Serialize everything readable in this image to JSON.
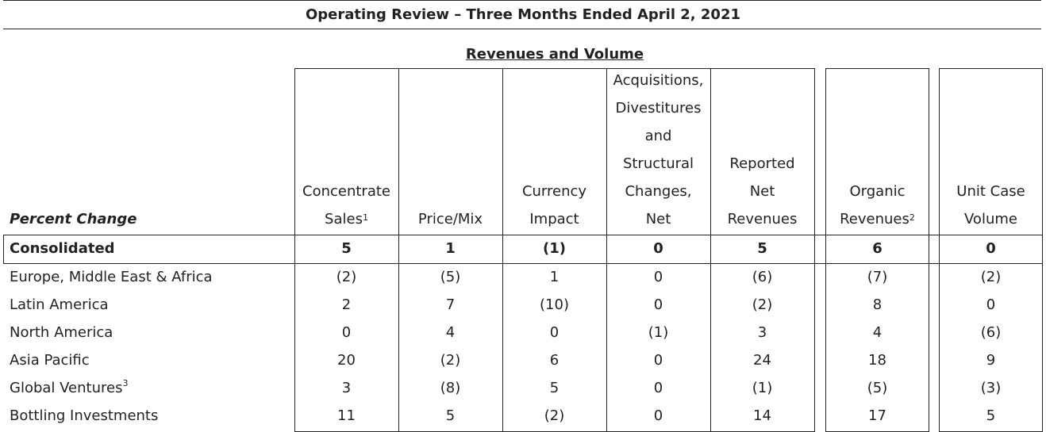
{
  "title": "Operating Review – Three Months Ended April 2, 2021",
  "group_header": "Revenues and Volume",
  "row_header": "Percent Change",
  "columns": [
    {
      "lines": [
        "Concentrate",
        "Sales"
      ],
      "sup": "1"
    },
    {
      "lines": [
        "Price/Mix"
      ],
      "sup": ""
    },
    {
      "lines": [
        "Currency",
        "Impact"
      ],
      "sup": ""
    },
    {
      "lines": [
        "Acquisitions,",
        "Divestitures",
        "and",
        "Structural",
        "Changes,",
        "Net"
      ],
      "sup": ""
    },
    {
      "lines": [
        "Reported",
        "Net",
        "Revenues"
      ],
      "sup": ""
    },
    {
      "lines": [
        "Organic",
        "Revenues"
      ],
      "sup": "2"
    },
    {
      "lines": [
        "Unit Case",
        "Volume"
      ],
      "sup": ""
    }
  ],
  "rows": [
    {
      "label": "Consolidated",
      "sup": "",
      "bold": true,
      "values": [
        "5",
        "1",
        "(1)",
        "0",
        "5",
        "6",
        "0"
      ]
    },
    {
      "label": "Europe, Middle East & Africa",
      "sup": "",
      "bold": false,
      "values": [
        "(2)",
        "(5)",
        "1",
        "0",
        "(6)",
        "(7)",
        "(2)"
      ]
    },
    {
      "label": "Latin America",
      "sup": "",
      "bold": false,
      "values": [
        "2",
        "7",
        "(10)",
        "0",
        "(2)",
        "8",
        "0"
      ]
    },
    {
      "label": "North America",
      "sup": "",
      "bold": false,
      "values": [
        "0",
        "4",
        "0",
        "(1)",
        "3",
        "4",
        "(6)"
      ]
    },
    {
      "label": "Asia Pacific",
      "sup": "",
      "bold": false,
      "values": [
        "20",
        "(2)",
        "6",
        "0",
        "24",
        "18",
        "9"
      ]
    },
    {
      "label": "Global Ventures",
      "sup": "3",
      "bold": false,
      "values": [
        "3",
        "(8)",
        "5",
        "0",
        "(1)",
        "(5)",
        "(3)"
      ]
    },
    {
      "label": "Bottling Investments",
      "sup": "",
      "bold": false,
      "values": [
        "11",
        "5",
        "(2)",
        "0",
        "14",
        "17",
        "5"
      ]
    }
  ]
}
